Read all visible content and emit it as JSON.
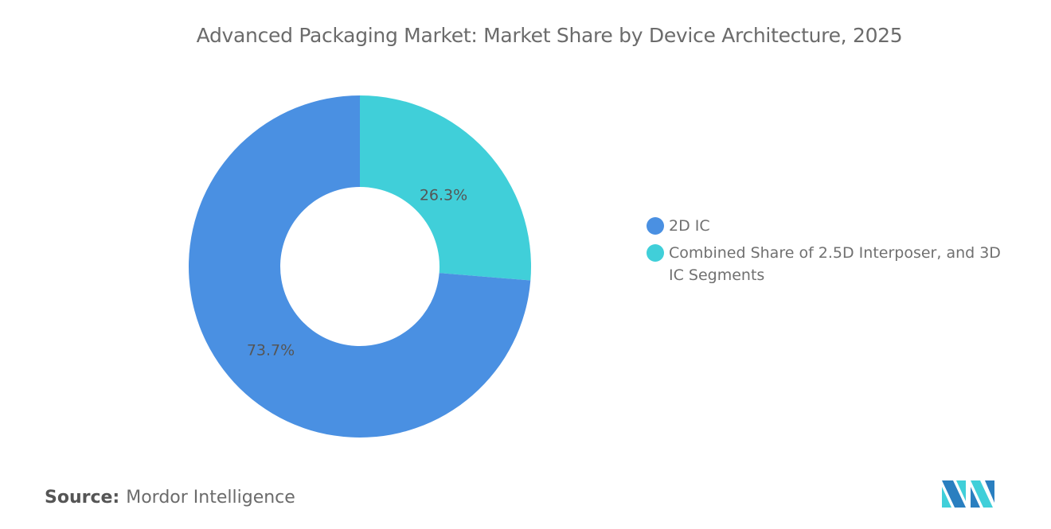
{
  "chart_data": {
    "type": "pie",
    "variant": "donut",
    "title": "Advanced Packaging Market: Market Share by Device Architecture, 2025",
    "slices": [
      {
        "label": "Combined Share of 2.5D Interposer, and 3D IC Segments",
        "value": 26.3,
        "data_label": "26.3%",
        "color": "#40CFD9"
      },
      {
        "label": "2D IC",
        "value": 73.7,
        "data_label": "73.7%",
        "color": "#4A90E2"
      }
    ],
    "legend": {
      "placement": "right",
      "entries": [
        {
          "label": "2D IC",
          "color": "#4A90E2"
        },
        {
          "label": "Combined Share of 2.5D Interposer, and 3D IC Segments",
          "color": "#40CFD9"
        }
      ]
    }
  },
  "source": {
    "label": "Source:",
    "value": "Mordor Intelligence"
  },
  "logo": {
    "name": "mordor-intelligence-logo",
    "colors": [
      "#2A7FC0",
      "#40CFD9"
    ]
  }
}
